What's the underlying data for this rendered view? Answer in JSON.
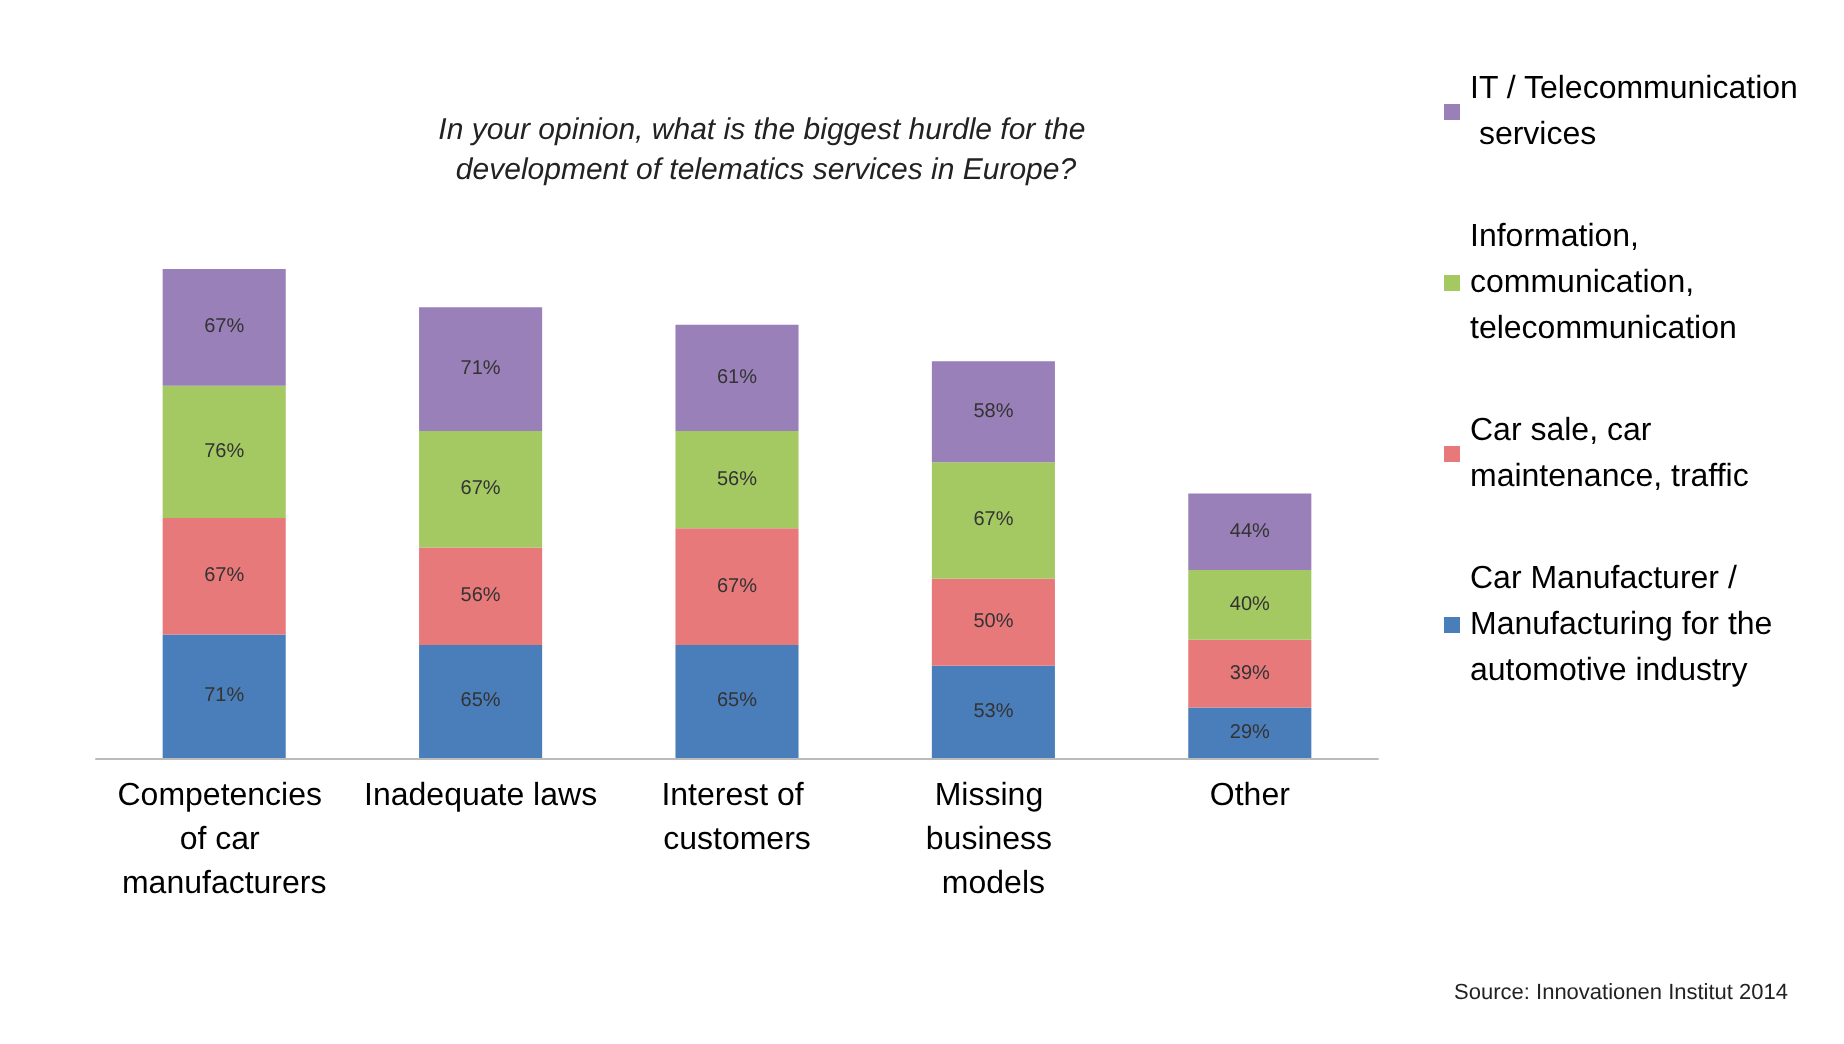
{
  "chart_data": {
    "type": "bar",
    "stacked": true,
    "title": "In your opinion, what is the biggest hurdle for the development of telematics services in Europe?",
    "categories": [
      "Competencies of car manufacturers",
      "Inadequate laws",
      "Interest of customers",
      "Missing business models",
      "Other"
    ],
    "series": [
      {
        "name": "Car Manufacturer / Manufacturing for the automotive industry",
        "color": "#4a7ebb",
        "values": [
          71,
          65,
          65,
          53,
          29
        ],
        "value_labels": [
          "71%",
          "65%",
          "65%",
          "53%",
          "29%"
        ]
      },
      {
        "name": "Car sale, car maintenance, traffic",
        "color": "#e8797a",
        "values": [
          67,
          56,
          67,
          50,
          39
        ],
        "value_labels": [
          "67%",
          "56%",
          "67%",
          "50%",
          "39%"
        ]
      },
      {
        "name": "Information, communication, telecommunication",
        "color": "#a4c963",
        "values": [
          76,
          67,
          56,
          67,
          40
        ],
        "value_labels": [
          "76%",
          "67%",
          "56%",
          "67%",
          "40%"
        ]
      },
      {
        "name": "IT / Telecommunication services",
        "color": "#9a80b8",
        "values": [
          67,
          71,
          61,
          58,
          44
        ],
        "value_labels": [
          "67%",
          "71%",
          "61%",
          "58%",
          "44%"
        ]
      }
    ],
    "legend": "right",
    "annotations": [
      "Source: Innovationen Institut 2014"
    ]
  }
}
